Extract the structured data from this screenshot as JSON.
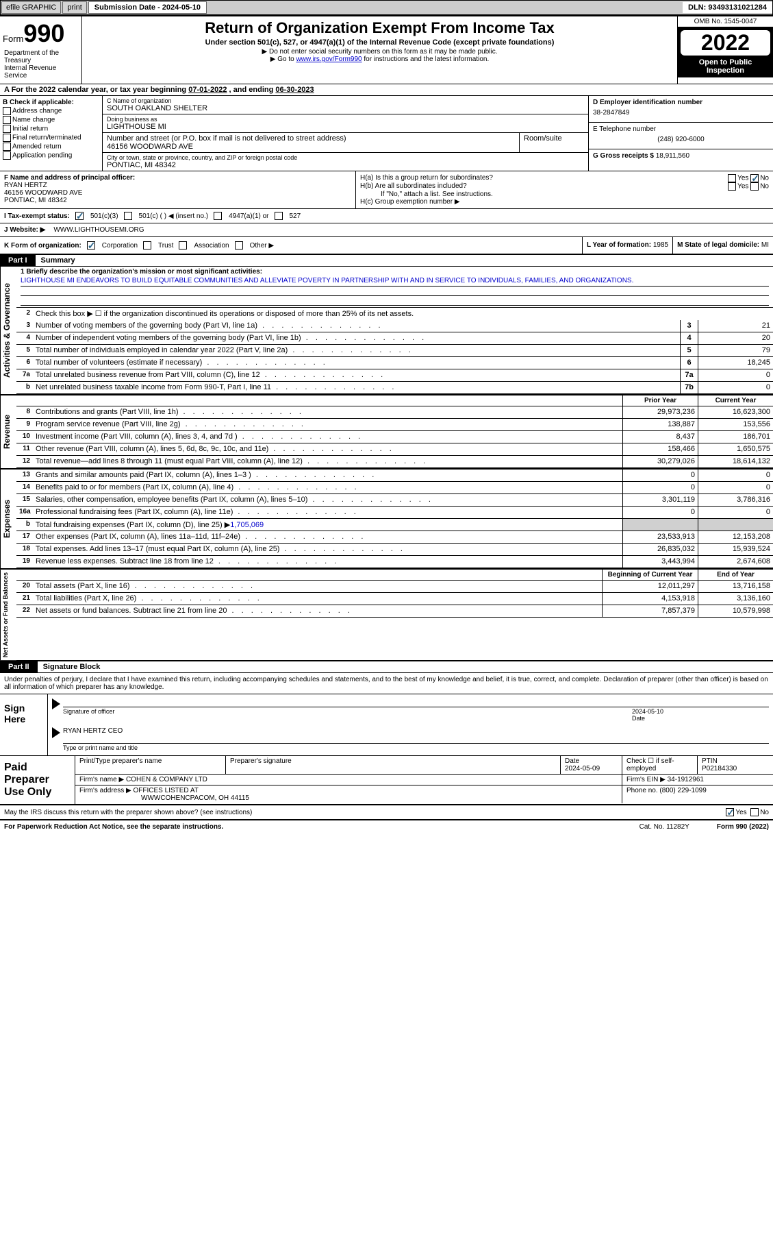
{
  "topbar": {
    "efile": "efile GRAPHIC",
    "print": "print",
    "submission_label": "Submission Date - 2024-05-10",
    "dln_label": "DLN: 93493131021284"
  },
  "header": {
    "form_word": "Form",
    "form_number": "990",
    "title": "Return of Organization Exempt From Income Tax",
    "subtitle": "Under section 501(c), 527, or 4947(a)(1) of the Internal Revenue Code (except private foundations)",
    "instr1": "▶ Do not enter social security numbers on this form as it may be made public.",
    "instr2_pre": "▶ Go to ",
    "instr2_link": "www.irs.gov/Form990",
    "instr2_post": " for instructions and the latest information.",
    "dept": "Department of the Treasury\nInternal Revenue Service",
    "omb": "OMB No. 1545-0047",
    "year": "2022",
    "open": "Open to Public Inspection"
  },
  "section_a": {
    "prefix": "A For the 2022 calendar year, or tax year beginning ",
    "begin": "07-01-2022",
    "mid": " , and ending ",
    "end": "06-30-2023"
  },
  "section_b": {
    "label": "B Check if applicable:",
    "opts": [
      "Address change",
      "Name change",
      "Initial return",
      "Final return/terminated",
      "Amended return",
      "Application pending"
    ]
  },
  "org": {
    "name_label": "C Name of organization",
    "name": "SOUTH OAKLAND SHELTER",
    "dba_label": "Doing business as",
    "dba": "LIGHTHOUSE MI",
    "street_label": "Number and street (or P.O. box if mail is not delivered to street address)",
    "street": "46156 WOODWARD AVE",
    "room_label": "Room/suite",
    "city_label": "City or town, state or province, country, and ZIP or foreign postal code",
    "city": "PONTIAC, MI  48342"
  },
  "rightcol": {
    "ein_label": "D Employer identification number",
    "ein": "38-2847849",
    "phone_label": "E Telephone number",
    "phone": "(248) 920-6000",
    "gross_label": "G Gross receipts $",
    "gross": "18,911,560"
  },
  "officer": {
    "label": "F Name and address of principal officer:",
    "name": "RYAN HERTZ",
    "addr1": "46156 WOODWARD AVE",
    "addr2": "PONTIAC, MI  48342"
  },
  "h": {
    "ha": "H(a)  Is this a group return for subordinates?",
    "hb": "H(b)  Are all subordinates included?",
    "hb_note": "If \"No,\" attach a list. See instructions.",
    "hc": "H(c)  Group exemption number ▶",
    "yes": "Yes",
    "no": "No"
  },
  "tax_status": {
    "label": "I   Tax-exempt status:",
    "opt1": "501(c)(3)",
    "opt2": "501(c) (   ) ◀ (insert no.)",
    "opt3": "4947(a)(1) or",
    "opt4": "527"
  },
  "website": {
    "label": "J   Website: ▶",
    "value": "WWW.LIGHTHOUSEMI.ORG"
  },
  "k_row": {
    "label": "K Form of organization:",
    "corp": "Corporation",
    "trust": "Trust",
    "assoc": "Association",
    "other": "Other ▶",
    "l_label": "L Year of formation:",
    "l_val": "1985",
    "m_label": "M State of legal domicile:",
    "m_val": "MI"
  },
  "part1": {
    "tag": "Part I",
    "title": "Summary"
  },
  "mission": {
    "prompt": "1   Briefly describe the organization's mission or most significant activities:",
    "text": "LIGHTHOUSE MI ENDEAVORS TO BUILD EQUITABLE COMMUNITIES AND ALLEVIATE POVERTY IN PARTNERSHIP WITH AND IN SERVICE TO INDIVIDUALS, FAMILIES, AND ORGANIZATIONS."
  },
  "line2": "Check this box ▶ ☐  if the organization discontinued its operations or disposed of more than 25% of its net assets.",
  "vlabels": {
    "gov": "Activities & Governance",
    "rev": "Revenue",
    "exp": "Expenses",
    "net": "Net Assets or Fund Balances"
  },
  "gov_lines": [
    {
      "n": "3",
      "d": "Number of voting members of the governing body (Part VI, line 1a)",
      "b": "3",
      "v": "21"
    },
    {
      "n": "4",
      "d": "Number of independent voting members of the governing body (Part VI, line 1b)",
      "b": "4",
      "v": "20"
    },
    {
      "n": "5",
      "d": "Total number of individuals employed in calendar year 2022 (Part V, line 2a)",
      "b": "5",
      "v": "79"
    },
    {
      "n": "6",
      "d": "Total number of volunteers (estimate if necessary)",
      "b": "6",
      "v": "18,245"
    },
    {
      "n": "7a",
      "d": "Total unrelated business revenue from Part VIII, column (C), line 12",
      "b": "7a",
      "v": "0"
    },
    {
      "n": "b",
      "d": "Net unrelated business taxable income from Form 990-T, Part I, line 11",
      "b": "7b",
      "v": "0"
    }
  ],
  "col_headers": {
    "prior": "Prior Year",
    "current": "Current Year",
    "begin": "Beginning of Current Year",
    "end": "End of Year"
  },
  "rev_lines": [
    {
      "n": "8",
      "d": "Contributions and grants (Part VIII, line 1h)",
      "p": "29,973,236",
      "c": "16,623,300"
    },
    {
      "n": "9",
      "d": "Program service revenue (Part VIII, line 2g)",
      "p": "138,887",
      "c": "153,556"
    },
    {
      "n": "10",
      "d": "Investment income (Part VIII, column (A), lines 3, 4, and 7d )",
      "p": "8,437",
      "c": "186,701"
    },
    {
      "n": "11",
      "d": "Other revenue (Part VIII, column (A), lines 5, 6d, 8c, 9c, 10c, and 11e)",
      "p": "158,466",
      "c": "1,650,575"
    },
    {
      "n": "12",
      "d": "Total revenue—add lines 8 through 11 (must equal Part VIII, column (A), line 12)",
      "p": "30,279,026",
      "c": "18,614,132"
    }
  ],
  "exp_lines": [
    {
      "n": "13",
      "d": "Grants and similar amounts paid (Part IX, column (A), lines 1–3 )",
      "p": "0",
      "c": "0"
    },
    {
      "n": "14",
      "d": "Benefits paid to or for members (Part IX, column (A), line 4)",
      "p": "0",
      "c": "0"
    },
    {
      "n": "15",
      "d": "Salaries, other compensation, employee benefits (Part IX, column (A), lines 5–10)",
      "p": "3,301,119",
      "c": "3,786,316"
    },
    {
      "n": "16a",
      "d": "Professional fundraising fees (Part IX, column (A), line 11e)",
      "p": "0",
      "c": "0"
    }
  ],
  "exp_16b": {
    "n": "b",
    "d": "Total fundraising expenses (Part IX, column (D), line 25) ▶",
    "v": "1,705,069"
  },
  "exp_lines2": [
    {
      "n": "17",
      "d": "Other expenses (Part IX, column (A), lines 11a–11d, 11f–24e)",
      "p": "23,533,913",
      "c": "12,153,208"
    },
    {
      "n": "18",
      "d": "Total expenses. Add lines 13–17 (must equal Part IX, column (A), line 25)",
      "p": "26,835,032",
      "c": "15,939,524"
    },
    {
      "n": "19",
      "d": "Revenue less expenses. Subtract line 18 from line 12",
      "p": "3,443,994",
      "c": "2,674,608"
    }
  ],
  "net_lines": [
    {
      "n": "20",
      "d": "Total assets (Part X, line 16)",
      "p": "12,011,297",
      "c": "13,716,158"
    },
    {
      "n": "21",
      "d": "Total liabilities (Part X, line 26)",
      "p": "4,153,918",
      "c": "3,136,160"
    },
    {
      "n": "22",
      "d": "Net assets or fund balances. Subtract line 21 from line 20",
      "p": "7,857,379",
      "c": "10,579,998"
    }
  ],
  "part2": {
    "tag": "Part II",
    "title": "Signature Block"
  },
  "declaration": "Under penalties of perjury, I declare that I have examined this return, including accompanying schedules and statements, and to the best of my knowledge and belief, it is true, correct, and complete. Declaration of preparer (other than officer) is based on all information of which preparer has any knowledge.",
  "sign": {
    "label": "Sign Here",
    "sig_of_officer": "Signature of officer",
    "date_label": "Date",
    "sig_date": "2024-05-10",
    "name_title": "RYAN HERTZ CEO",
    "type_label": "Type or print name and title"
  },
  "preparer": {
    "label": "Paid Preparer Use Only",
    "print_label": "Print/Type preparer's name",
    "sig_label": "Preparer's signature",
    "date_label": "Date",
    "date": "2024-05-09",
    "check_label": "Check ☐ if self-employed",
    "ptin_label": "PTIN",
    "ptin": "P02184330",
    "firm_name_label": "Firm's name    ▶",
    "firm_name": "COHEN & COMPANY LTD",
    "firm_ein_label": "Firm's EIN ▶",
    "firm_ein": "34-1912961",
    "firm_addr_label": "Firm's address ▶",
    "firm_addr1": "OFFICES LISTED AT",
    "firm_addr2": "WWWCOHENCPACOM, OH  44115",
    "phone_label": "Phone no.",
    "phone": "(800) 229-1099"
  },
  "discuss": {
    "q": "May the IRS discuss this return with the preparer shown above? (see instructions)",
    "yes": "Yes",
    "no": "No"
  },
  "footer": {
    "paperwork": "For Paperwork Reduction Act Notice, see the separate instructions.",
    "cat": "Cat. No. 11282Y",
    "form": "Form 990 (2022)"
  }
}
